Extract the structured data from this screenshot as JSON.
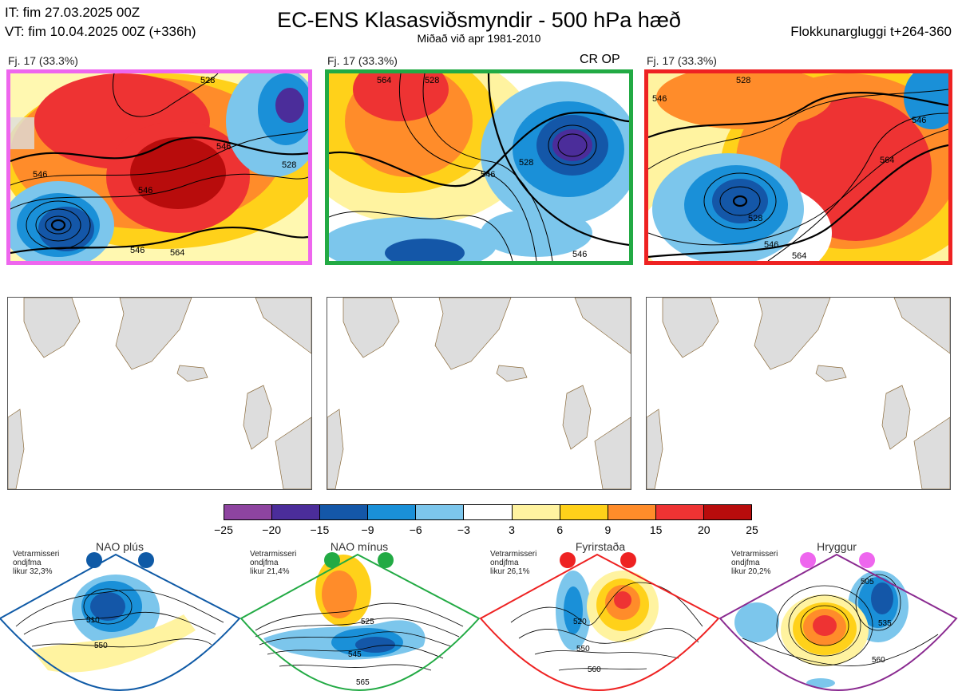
{
  "header": {
    "it": "IT: fim 27.03.2025 00Z",
    "vt": "VT: fim 10.04.2025 00Z  (+336h)",
    "title": "EC-ENS Klasasviðsmyndir - 500 hPa hæð",
    "subtitle": "Miðað við apr 1981-2010",
    "cluster_window": "Flokkunargluggi t+264-360"
  },
  "panels": [
    {
      "label": "Fj. 17 (33.3%)",
      "border_color": "#ee66ee",
      "contour_labels": [
        "546",
        "528",
        "546",
        "546",
        "564",
        "546",
        "528"
      ]
    },
    {
      "label": "Fj. 17 (33.3%)",
      "border_color": "#22aa44",
      "cr_op": "CR OP",
      "contour_labels": [
        "564",
        "528",
        "546",
        "528",
        "546"
      ]
    },
    {
      "label": "Fj. 17 (33.3%)",
      "border_color": "#ee2222",
      "contour_labels": [
        "528",
        "546",
        "528",
        "546",
        "564",
        "546",
        "564"
      ]
    }
  ],
  "colorbar": {
    "ticks": [
      "−25",
      "−20",
      "−15",
      "−9",
      "−6",
      "−3",
      "3",
      "6",
      "9",
      "15",
      "20",
      "25"
    ],
    "colors": [
      "#8e44a0",
      "#4b2d9a",
      "#1457a8",
      "#1a90d8",
      "#7cc6ec",
      "#ffffff",
      "#fff3a0",
      "#ffd11a",
      "#ff8c2a",
      "#ee3333",
      "#b80c0c"
    ]
  },
  "regimes": [
    {
      "name": "NAO plús",
      "note": [
        "Vetrarmisseri",
        "ondjfma",
        "likur 32,3%"
      ],
      "color": "#0f5aa6",
      "contour_labels": [
        "510",
        "550"
      ]
    },
    {
      "name": "NAO mínus",
      "note": [
        "Vetrarmisseri",
        "ondjfma",
        "likur 21,4%"
      ],
      "color": "#22aa44",
      "contour_labels": [
        "525",
        "545",
        "565"
      ]
    },
    {
      "name": "Fyrirstaða",
      "note": [
        "Vetrarmisseri",
        "ondjfma",
        "likur 26,1%"
      ],
      "color": "#ee2222",
      "contour_labels": [
        "520",
        "550",
        "560"
      ]
    },
    {
      "name": "Hryggur",
      "note": [
        "Vetrarmisseri",
        "ondjfma",
        "likur 20,2%"
      ],
      "color": "#ee66ee",
      "contour_labels": [
        "505",
        "535",
        "560"
      ]
    }
  ]
}
